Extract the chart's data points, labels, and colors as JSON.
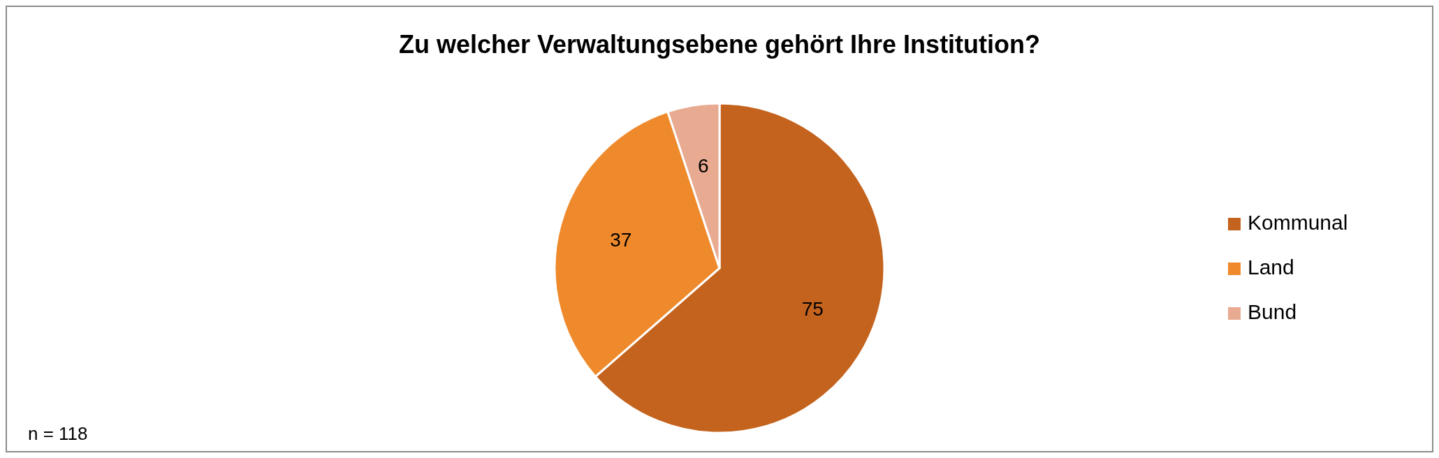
{
  "chart_data": {
    "type": "pie",
    "title": "Zu welcher Verwaltungsebene gehört Ihre Institution?",
    "categories": [
      "Kommunal",
      "Land",
      "Bund"
    ],
    "values": [
      75,
      37,
      6
    ],
    "colors": [
      "#c4631d",
      "#ef8a2c",
      "#e8aa90"
    ],
    "data_labels": true,
    "legend": "right",
    "annotations": [
      "n = 118"
    ]
  }
}
